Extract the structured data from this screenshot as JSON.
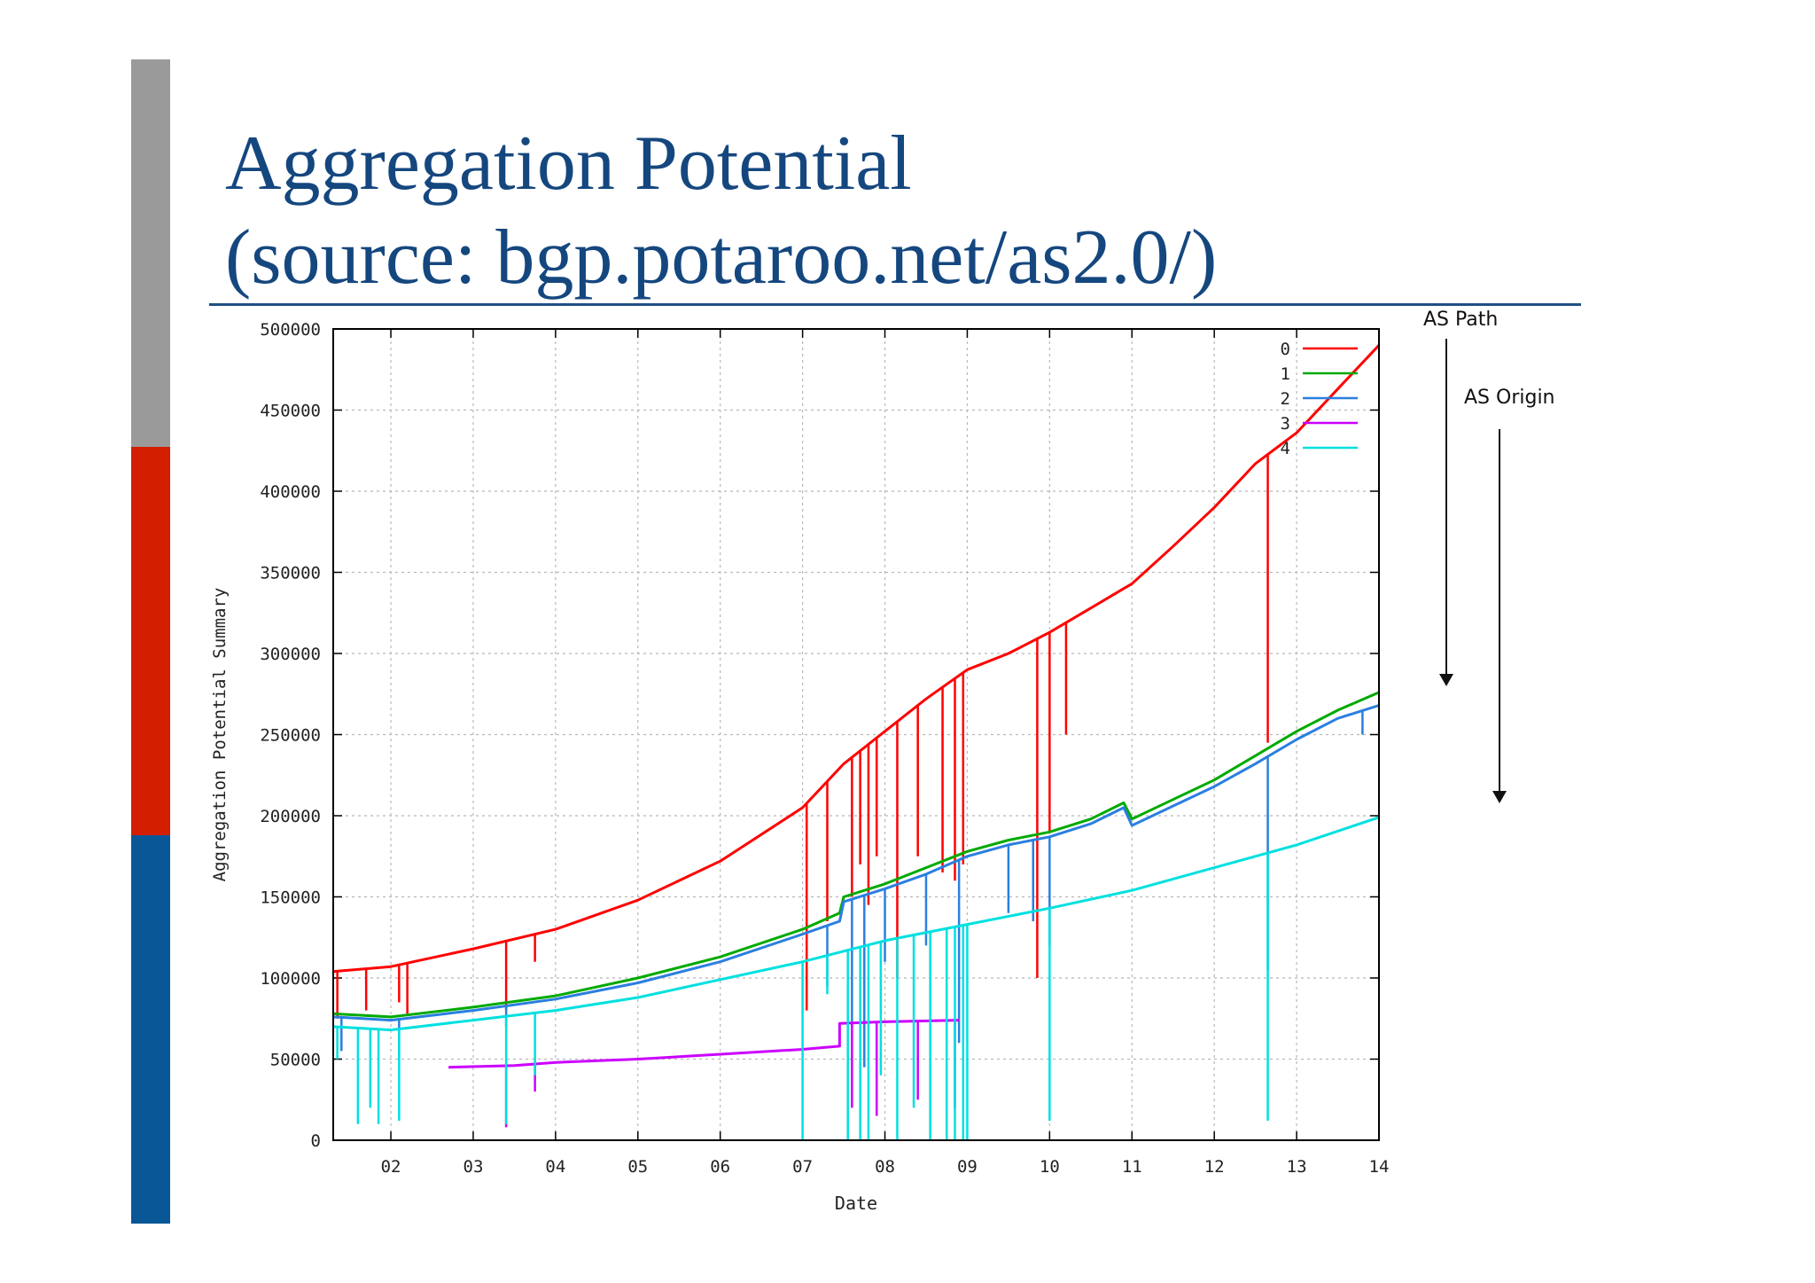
{
  "slide": {
    "title_line1": "Aggregation Potential",
    "title_line2": "(source: bgp.potaroo.net/as2.0/)",
    "annotation_path": "AS Path",
    "annotation_origin": "AS Origin",
    "colors": {
      "title": "#15477f",
      "bar_gray": "#9a9a9a",
      "bar_red": "#d41e00",
      "bar_blue": "#0a5797"
    }
  },
  "chart_data": {
    "type": "line",
    "xlabel": "Date",
    "ylabel": "Aggregation Potential Summary",
    "x_axis": "year (20xx)",
    "xlim": [
      2001.3,
      2014.0
    ],
    "ylim": [
      0,
      500000
    ],
    "xticks": [
      2002,
      2003,
      2004,
      2005,
      2006,
      2007,
      2008,
      2009,
      2010,
      2011,
      2012,
      2013,
      2014
    ],
    "xtick_labels": [
      "02",
      "03",
      "04",
      "05",
      "06",
      "07",
      "08",
      "09",
      "10",
      "11",
      "12",
      "13",
      "14"
    ],
    "yticks": [
      0,
      50000,
      100000,
      150000,
      200000,
      250000,
      300000,
      350000,
      400000,
      450000,
      500000
    ],
    "ytick_labels": [
      "0",
      "50000",
      "100000",
      "150000",
      "200000",
      "250000",
      "300000",
      "350000",
      "400000",
      "450000",
      "500000"
    ],
    "grid": true,
    "legend_position": "top-right",
    "series": [
      {
        "name": "0",
        "color": "#ff0000",
        "points": [
          [
            2001.3,
            104000
          ],
          [
            2002.0,
            107000
          ],
          [
            2003.0,
            118000
          ],
          [
            2004.0,
            130000
          ],
          [
            2005.0,
            148000
          ],
          [
            2006.0,
            172000
          ],
          [
            2007.0,
            205000
          ],
          [
            2007.5,
            232000
          ],
          [
            2008.0,
            252000
          ],
          [
            2008.5,
            272000
          ],
          [
            2009.0,
            290000
          ],
          [
            2009.5,
            300000
          ],
          [
            2010.0,
            313000
          ],
          [
            2010.5,
            328000
          ],
          [
            2011.0,
            343000
          ],
          [
            2011.5,
            366000
          ],
          [
            2012.0,
            390000
          ],
          [
            2012.5,
            417000
          ],
          [
            2013.0,
            436000
          ],
          [
            2013.5,
            463000
          ],
          [
            2014.0,
            490000
          ]
        ],
        "spikes": [
          [
            2001.35,
            75000
          ],
          [
            2001.7,
            80000
          ],
          [
            2002.1,
            85000
          ],
          [
            2002.2,
            78000
          ],
          [
            2003.4,
            80000
          ],
          [
            2003.75,
            110000
          ],
          [
            2007.05,
            80000
          ],
          [
            2007.3,
            135000
          ],
          [
            2007.6,
            150000
          ],
          [
            2007.7,
            170000
          ],
          [
            2007.8,
            145000
          ],
          [
            2007.9,
            175000
          ],
          [
            2008.15,
            100000
          ],
          [
            2008.4,
            175000
          ],
          [
            2008.7,
            165000
          ],
          [
            2008.85,
            160000
          ],
          [
            2008.95,
            170000
          ],
          [
            2009.85,
            100000
          ],
          [
            2010.0,
            190000
          ],
          [
            2010.2,
            250000
          ],
          [
            2012.65,
            245000
          ]
        ]
      },
      {
        "name": "1",
        "color": "#00aa00",
        "points": [
          [
            2001.3,
            78000
          ],
          [
            2002.0,
            76000
          ],
          [
            2003.0,
            82000
          ],
          [
            2004.0,
            89000
          ],
          [
            2005.0,
            100000
          ],
          [
            2006.0,
            113000
          ],
          [
            2007.0,
            130000
          ],
          [
            2007.45,
            140000
          ],
          [
            2007.5,
            150000
          ],
          [
            2008.0,
            158000
          ],
          [
            2008.5,
            168000
          ],
          [
            2009.0,
            178000
          ],
          [
            2009.5,
            185000
          ],
          [
            2010.0,
            190000
          ],
          [
            2010.5,
            198000
          ],
          [
            2010.9,
            208000
          ],
          [
            2011.0,
            198000
          ],
          [
            2011.5,
            210000
          ],
          [
            2012.0,
            222000
          ],
          [
            2012.5,
            237000
          ],
          [
            2013.0,
            252000
          ],
          [
            2013.5,
            265000
          ],
          [
            2014.0,
            276000
          ]
        ],
        "spikes": []
      },
      {
        "name": "2",
        "color": "#2a7fe0",
        "points": [
          [
            2001.3,
            76000
          ],
          [
            2002.0,
            74000
          ],
          [
            2003.0,
            80000
          ],
          [
            2004.0,
            87000
          ],
          [
            2005.0,
            97000
          ],
          [
            2006.0,
            110000
          ],
          [
            2007.0,
            127000
          ],
          [
            2007.45,
            135000
          ],
          [
            2007.5,
            147000
          ],
          [
            2008.0,
            155000
          ],
          [
            2008.5,
            164000
          ],
          [
            2009.0,
            175000
          ],
          [
            2009.5,
            182000
          ],
          [
            2010.0,
            187000
          ],
          [
            2010.5,
            195000
          ],
          [
            2010.9,
            205000
          ],
          [
            2011.0,
            194000
          ],
          [
            2011.5,
            206000
          ],
          [
            2012.0,
            218000
          ],
          [
            2012.5,
            232000
          ],
          [
            2013.0,
            247000
          ],
          [
            2013.5,
            260000
          ],
          [
            2014.0,
            268000
          ]
        ],
        "spikes": [
          [
            2001.4,
            55000
          ],
          [
            2002.1,
            50000
          ],
          [
            2003.4,
            70000
          ],
          [
            2007.3,
            95000
          ],
          [
            2007.6,
            70000
          ],
          [
            2007.75,
            45000
          ],
          [
            2008.0,
            110000
          ],
          [
            2008.5,
            120000
          ],
          [
            2008.9,
            60000
          ],
          [
            2009.5,
            140000
          ],
          [
            2009.8,
            135000
          ],
          [
            2010.0,
            120000
          ],
          [
            2012.65,
            105000
          ],
          [
            2013.8,
            250000
          ]
        ]
      },
      {
        "name": "3",
        "color": "#cc00ff",
        "points": [
          [
            2002.7,
            45000
          ],
          [
            2003.5,
            46000
          ],
          [
            2004.0,
            48000
          ],
          [
            2005.0,
            50000
          ],
          [
            2006.0,
            53000
          ],
          [
            2007.0,
            56000
          ],
          [
            2007.45,
            58000
          ],
          [
            2007.45,
            72000
          ],
          [
            2008.0,
            73000
          ],
          [
            2008.9,
            74000
          ]
        ],
        "spikes": [
          [
            2003.4,
            8000
          ],
          [
            2003.75,
            30000
          ],
          [
            2007.6,
            20000
          ],
          [
            2007.9,
            15000
          ],
          [
            2008.4,
            25000
          ],
          [
            2008.85,
            20000
          ]
        ]
      },
      {
        "name": "4",
        "color": "#00e0e0",
        "points": [
          [
            2001.3,
            70000
          ],
          [
            2002.0,
            68000
          ],
          [
            2003.0,
            74000
          ],
          [
            2004.0,
            80000
          ],
          [
            2005.0,
            88000
          ],
          [
            2006.0,
            99000
          ],
          [
            2007.0,
            110000
          ],
          [
            2008.0,
            123000
          ],
          [
            2009.0,
            133000
          ],
          [
            2010.0,
            143000
          ],
          [
            2011.0,
            154000
          ],
          [
            2012.0,
            168000
          ],
          [
            2013.0,
            182000
          ],
          [
            2014.0,
            199000
          ]
        ],
        "spikes": [
          [
            2001.35,
            50000
          ],
          [
            2001.6,
            10000
          ],
          [
            2001.75,
            20000
          ],
          [
            2001.85,
            10000
          ],
          [
            2002.1,
            12000
          ],
          [
            2003.4,
            10000
          ],
          [
            2003.75,
            40000
          ],
          [
            2007.0,
            0
          ],
          [
            2007.3,
            90000
          ],
          [
            2007.55,
            0
          ],
          [
            2007.7,
            0
          ],
          [
            2007.8,
            0
          ],
          [
            2007.95,
            40000
          ],
          [
            2008.15,
            0
          ],
          [
            2008.35,
            20000
          ],
          [
            2008.55,
            0
          ],
          [
            2008.75,
            0
          ],
          [
            2008.85,
            0
          ],
          [
            2008.95,
            0
          ],
          [
            2009.0,
            0
          ],
          [
            2010.0,
            12000
          ],
          [
            2012.65,
            12000
          ]
        ]
      }
    ]
  }
}
